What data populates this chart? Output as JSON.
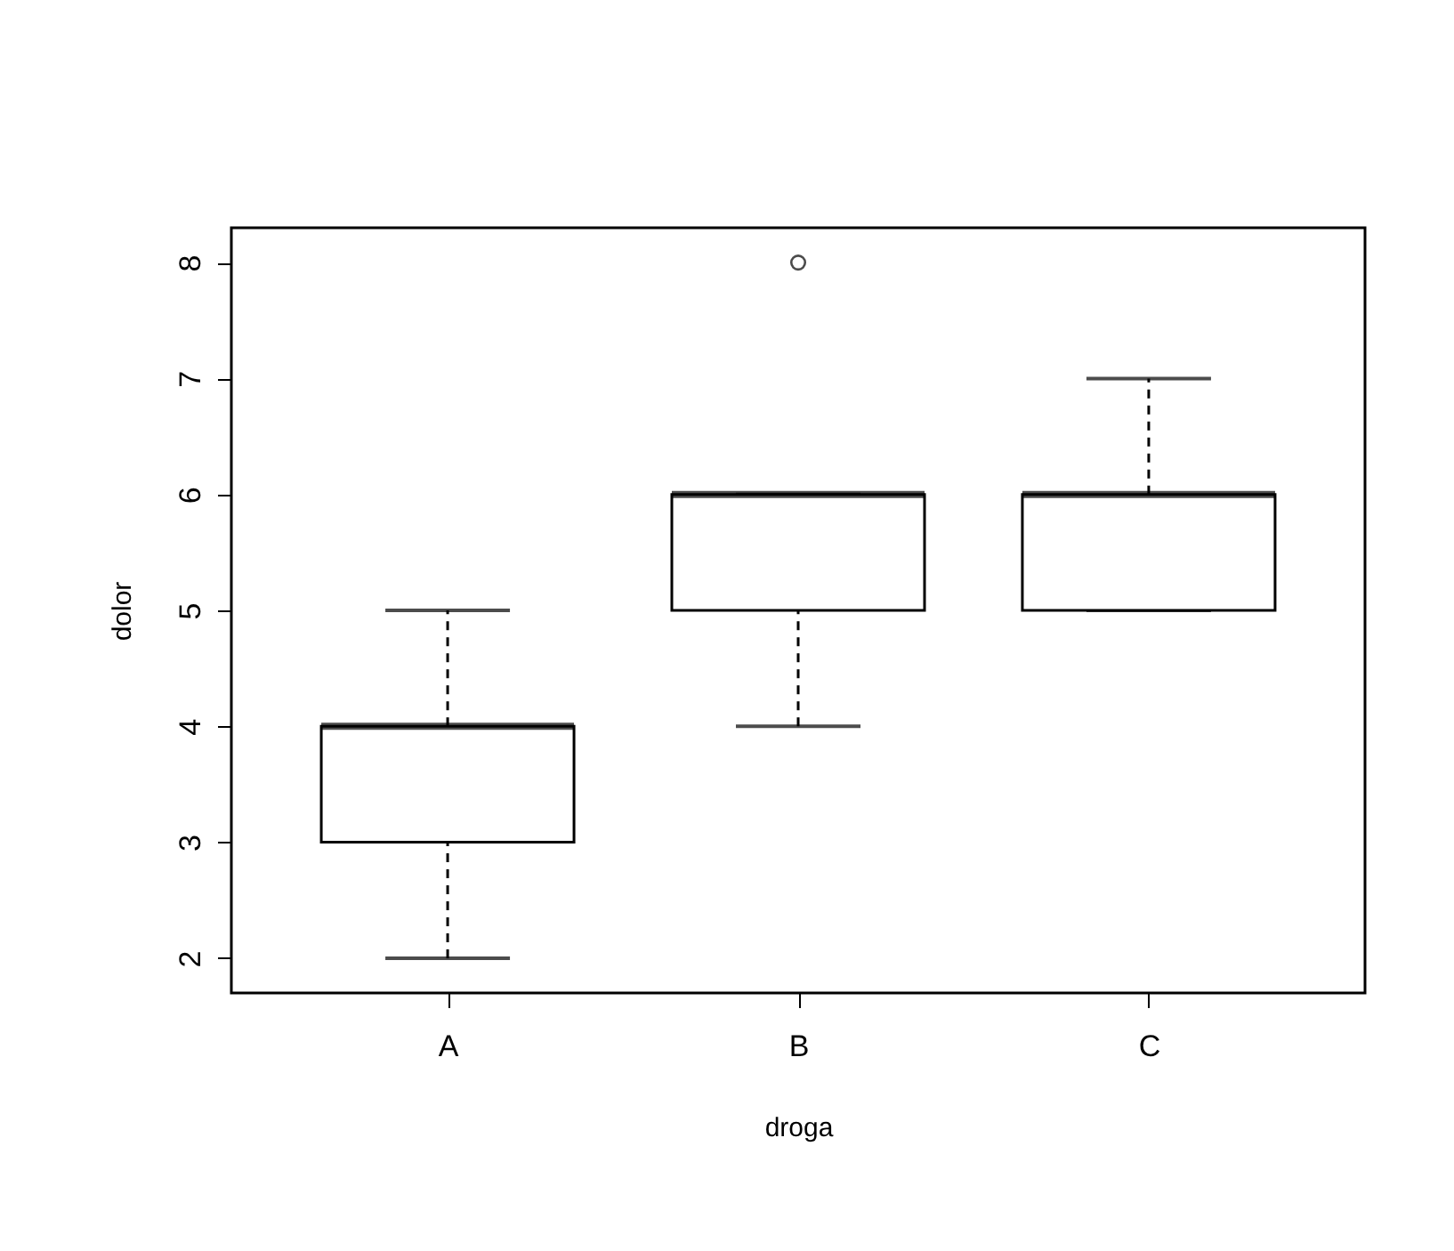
{
  "chart_data": {
    "type": "box",
    "xlabel": "droga",
    "ylabel": "dolor",
    "categories": [
      "A",
      "B",
      "C"
    ],
    "boxes": [
      {
        "low": 2,
        "q1": 3,
        "median": 4,
        "q3": 4,
        "high": 5
      },
      {
        "low": 4,
        "q1": 5,
        "median": 6,
        "q3": 6,
        "high": 6,
        "outliers": [
          8
        ]
      },
      {
        "low": 5,
        "q1": 5,
        "median": 6,
        "q3": 6,
        "high": 7
      }
    ],
    "ylim": [
      1.7,
      8.3
    ],
    "yticks": [
      2,
      3,
      4,
      5,
      6,
      7,
      8
    ]
  }
}
